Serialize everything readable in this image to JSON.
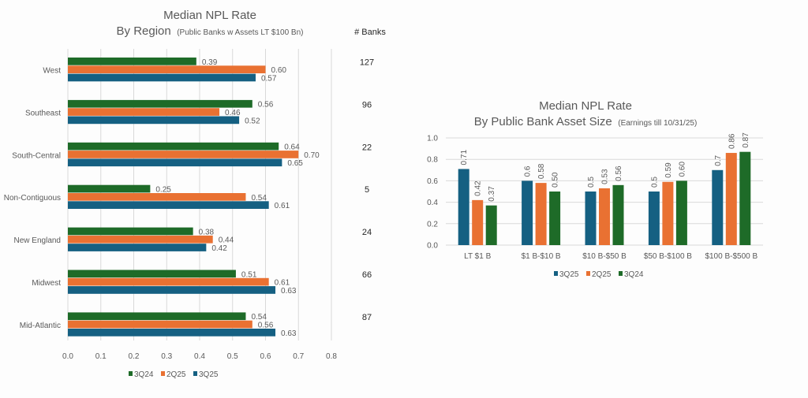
{
  "chart_data": [
    {
      "type": "bar",
      "orientation": "horizontal",
      "title": "Median NPL Rate",
      "subtitle_main": "By Region",
      "subtitle_note": "(Public Banks w Assets LT $100 Bn)",
      "side_header": "# Banks",
      "categories": [
        "West",
        "Southeast",
        "South-Central",
        "Non-Contiguous",
        "New England",
        "Midwest",
        "Mid-Atlantic"
      ],
      "bank_counts": [
        "127",
        "96",
        "22",
        "5",
        "24",
        "66",
        "87"
      ],
      "series": [
        {
          "name": "3Q24",
          "color": "#1e6b28",
          "values": [
            0.39,
            0.56,
            0.64,
            0.25,
            0.38,
            0.51,
            0.54
          ],
          "labels": [
            "0.39",
            "0.56",
            "0.64",
            "0.25",
            "0.38",
            "0.51",
            "0.54"
          ]
        },
        {
          "name": "2Q25",
          "color": "#e97132",
          "values": [
            0.6,
            0.46,
            0.7,
            0.54,
            0.44,
            0.61,
            0.56
          ],
          "labels": [
            "0.60",
            "0.46",
            "0.70",
            "0.54",
            "0.44",
            "0.61",
            "0.56"
          ]
        },
        {
          "name": "3Q25",
          "color": "#156082",
          "values": [
            0.57,
            0.52,
            0.65,
            0.61,
            0.42,
            0.63,
            0.63
          ],
          "labels": [
            "0.57",
            "0.52",
            "0.65",
            "0.61",
            "0.42",
            "0.63",
            "0.63"
          ]
        }
      ],
      "xlim": [
        0,
        0.8
      ],
      "x_ticks": [
        "0.0",
        "0.1",
        "0.2",
        "0.3",
        "0.4",
        "0.5",
        "0.6",
        "0.7",
        "0.8"
      ],
      "grid": true,
      "legend": "bottom"
    },
    {
      "type": "bar",
      "orientation": "vertical",
      "title": "Median NPL Rate",
      "subtitle_main": "By Public Bank Asset Size",
      "subtitle_note": "(Earnings till 10/31/25)",
      "categories": [
        "LT $1 B",
        "$1 B-$10 B",
        "$10 B-$50 B",
        "$50 B-$100 B",
        "$100 B-$500 B"
      ],
      "series": [
        {
          "name": "3Q25",
          "color": "#156082",
          "values": [
            0.71,
            0.6,
            0.5,
            0.5,
            0.7
          ],
          "labels": [
            "0.71",
            "0.6",
            "0.5",
            "0.5",
            "0.7"
          ]
        },
        {
          "name": "2Q25",
          "color": "#e97132",
          "values": [
            0.42,
            0.58,
            0.53,
            0.59,
            0.86
          ],
          "labels": [
            "0.42",
            "0.58",
            "0.53",
            "0.59",
            "0.86"
          ]
        },
        {
          "name": "3Q24",
          "color": "#1e6b28",
          "values": [
            0.37,
            0.5,
            0.56,
            0.6,
            0.87
          ],
          "labels": [
            "0.37",
            "0.50",
            "0.56",
            "0.60",
            "0.87"
          ]
        }
      ],
      "ylim": [
        0,
        1.0
      ],
      "y_ticks": [
        "0.0",
        "0.2",
        "0.4",
        "0.6",
        "0.8",
        "1.0"
      ],
      "grid": true,
      "legend": "bottom"
    }
  ]
}
